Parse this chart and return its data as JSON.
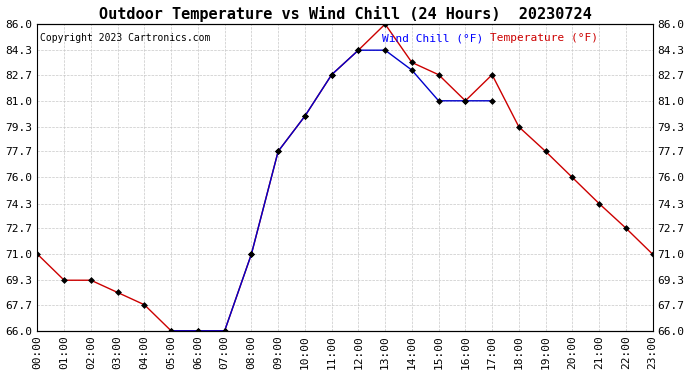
{
  "title": "Outdoor Temperature vs Wind Chill (24 Hours)  20230724",
  "copyright": "Copyright 2023 Cartronics.com",
  "legend_wind_chill": "Wind Chill (°F)",
  "legend_temperature": "Temperature (°F)",
  "x_labels": [
    "00:00",
    "01:00",
    "02:00",
    "03:00",
    "04:00",
    "05:00",
    "06:00",
    "07:00",
    "08:00",
    "09:00",
    "10:00",
    "11:00",
    "12:00",
    "13:00",
    "14:00",
    "15:00",
    "16:00",
    "17:00",
    "18:00",
    "19:00",
    "20:00",
    "21:00",
    "22:00",
    "23:00"
  ],
  "temperature": [
    71.0,
    69.3,
    69.3,
    68.5,
    67.7,
    66.0,
    66.0,
    66.0,
    71.0,
    77.7,
    80.0,
    82.7,
    84.3,
    86.0,
    83.5,
    82.7,
    81.0,
    82.7,
    79.3,
    77.7,
    76.0,
    74.3,
    72.7,
    71.0
  ],
  "wind_chill": [
    null,
    null,
    null,
    null,
    null,
    66.0,
    66.0,
    66.0,
    71.0,
    77.7,
    80.0,
    82.7,
    84.3,
    84.3,
    83.0,
    81.0,
    81.0,
    81.0,
    null,
    null,
    null,
    null,
    null,
    null
  ],
  "ylim_min": 66.0,
  "ylim_max": 86.0,
  "yticks": [
    66.0,
    67.7,
    69.3,
    71.0,
    72.7,
    74.3,
    76.0,
    77.7,
    79.3,
    81.0,
    82.7,
    84.3,
    86.0
  ],
  "bg_color": "#ffffff",
  "grid_color": "#c8c8c8",
  "temp_color": "#cc0000",
  "wind_color": "#0000cc",
  "title_color": "#000000",
  "copyright_color": "#000000",
  "legend_wind_color": "#0000ff",
  "legend_temp_color": "#cc0000",
  "marker_color": "#000000",
  "title_fontsize": 11,
  "axis_fontsize": 8,
  "copyright_fontsize": 7
}
